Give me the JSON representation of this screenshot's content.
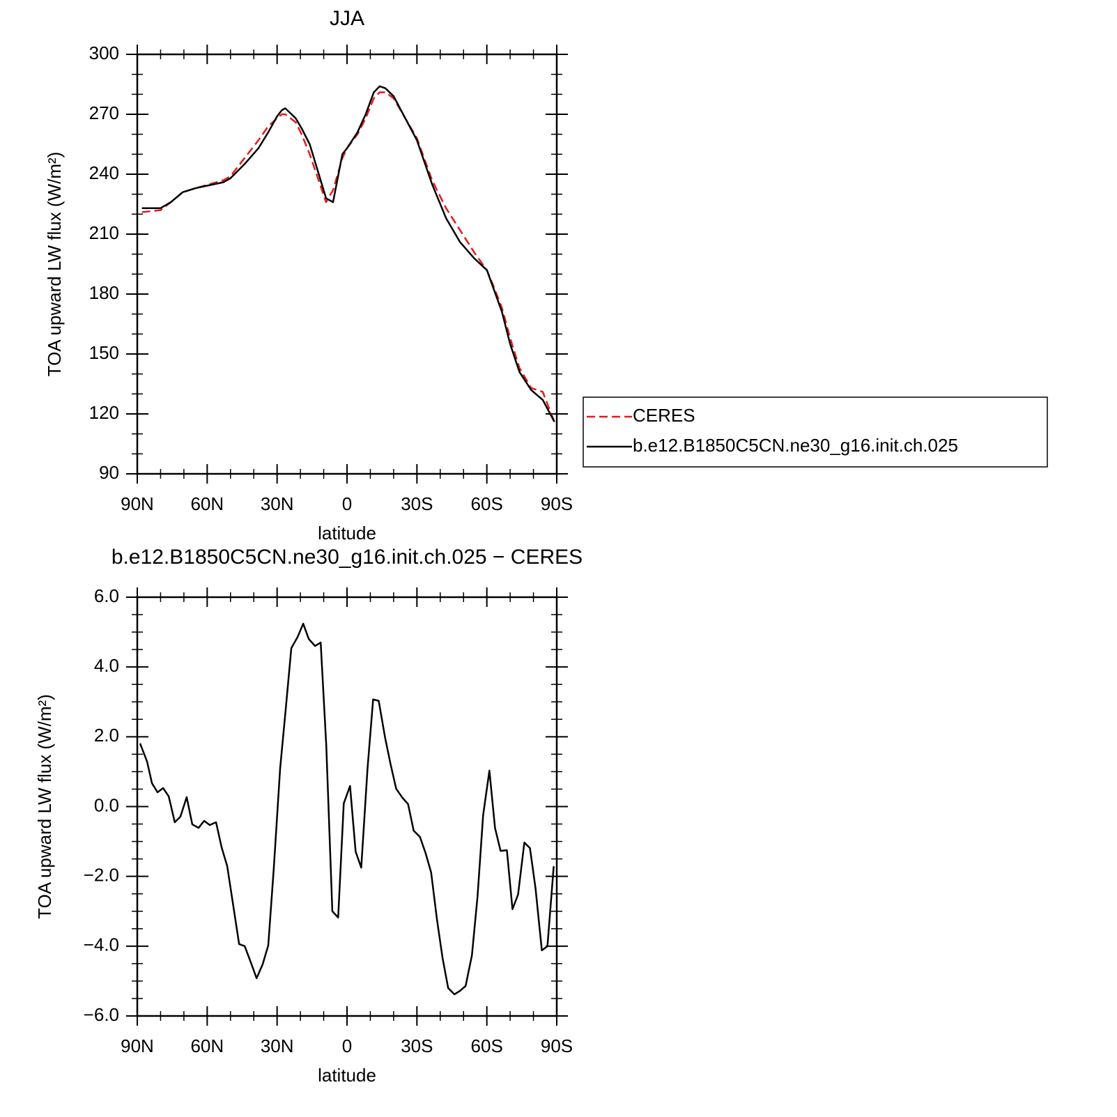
{
  "chart_data": [
    {
      "type": "line",
      "title": "JJA",
      "xlabel": "latitude",
      "ylabel": "TOA upward LW flux (W/m²)",
      "x": [
        88,
        80,
        75.6,
        70.5,
        65,
        59,
        53,
        50,
        44,
        38,
        33.8,
        30,
        28,
        26.5,
        22,
        19.5,
        16,
        9,
        6,
        2,
        0,
        -4.5,
        -8,
        -11.5,
        -14,
        -16.5,
        -20,
        -30,
        -36.5,
        -42.5,
        -48.5,
        -54.5,
        -60,
        -62.5,
        -66.5,
        -70,
        -74,
        -79,
        -84,
        -89
      ],
      "series": [
        {
          "name": "CERES",
          "color": "#e41a1c",
          "line_style": "dashed",
          "values": [
            221,
            222,
            226,
            231,
            233,
            235,
            237,
            239,
            248,
            257,
            264,
            268,
            270,
            270,
            266,
            260,
            250,
            226,
            232,
            248,
            253,
            260,
            268,
            278,
            281,
            281,
            278,
            258,
            237,
            223,
            212,
            201,
            192,
            185,
            173,
            158,
            143,
            133,
            131,
            116
          ]
        },
        {
          "name": "b.e12.B1850C5CN.ne30_g16.init.ch.025",
          "color": "#000000",
          "line_style": "solid",
          "values": [
            223,
            223,
            226,
            231,
            233,
            234.5,
            236,
            238,
            245,
            253,
            261,
            269,
            272,
            273,
            268,
            263,
            255,
            228,
            226,
            250,
            253,
            261,
            270,
            281,
            284,
            283,
            279,
            257,
            235,
            218,
            206,
            198,
            192,
            184,
            171,
            155,
            141,
            132,
            127,
            116
          ]
        }
      ],
      "xlim": [
        90,
        -90
      ],
      "xticks": [
        {
          "value": 90,
          "label": "90N"
        },
        {
          "value": 60,
          "label": "60N"
        },
        {
          "value": 30,
          "label": "30N"
        },
        0,
        {
          "value": -30,
          "label": "30S"
        },
        {
          "value": -60,
          "label": "60S"
        },
        {
          "value": -90,
          "label": "90S"
        }
      ],
      "xminor_ticks": [
        80,
        70,
        50,
        40,
        20,
        10,
        -10,
        -20,
        -40,
        -50,
        -70,
        -80
      ],
      "ylim": [
        90,
        300
      ],
      "yticks": [
        90,
        120,
        150,
        180,
        210,
        240,
        270,
        300
      ],
      "yminor_ticks": [
        100,
        110,
        130,
        140,
        160,
        170,
        190,
        200,
        220,
        230,
        250,
        260,
        280,
        290
      ],
      "legend": "outside-right"
    },
    {
      "type": "line",
      "title": "b.e12.B1850C5CN.ne30_g16.init.ch.025 − CERES",
      "xlabel": "latitude",
      "ylabel": "TOA upward LW flux (W/m²)",
      "x": [
        88.8,
        85.8,
        83.7,
        81.3,
        78.9,
        76.5,
        73.9,
        71.5,
        68.8,
        66.4,
        63.7,
        61.3,
        58.9,
        56.2,
        53.8,
        51.4,
        48.7,
        46.3,
        43.9,
        41.2,
        38.8,
        36.2,
        33.8,
        31.4,
        28.7,
        26.3,
        23.9,
        21.2,
        18.8,
        16.4,
        13.7,
        11.3,
        8.9,
        6.3,
        3.8,
        1.4,
        -1.3,
        -3.7,
        -6.1,
        -8.8,
        -11.2,
        -13.6,
        -16.3,
        -18.7,
        -21.1,
        -23.8,
        -26.2,
        -28.6,
        -31.3,
        -33.7,
        -36.1,
        -38.6,
        -41,
        -43.4,
        -46.1,
        -48.5,
        -50.9,
        -53.6,
        -56,
        -58.4,
        -61.1,
        -63.5,
        -65.9,
        -68.6,
        -71,
        -73.4,
        -76.1,
        -78.5,
        -80.9,
        -83.6,
        -86,
        -88.7
      ],
      "color": "#000000",
      "values": [
        1.81,
        1.29,
        0.67,
        0.41,
        0.53,
        0.29,
        -0.45,
        -0.29,
        0.27,
        -0.51,
        -0.61,
        -0.41,
        -0.53,
        -0.45,
        -1.17,
        -1.71,
        -2.89,
        -3.94,
        -4.0,
        -4.48,
        -4.92,
        -4.52,
        -3.98,
        -1.75,
        1.09,
        2.79,
        4.54,
        4.86,
        5.24,
        4.8,
        4.6,
        4.7,
        1.75,
        -3.0,
        -3.18,
        0.09,
        0.59,
        -1.29,
        -1.75,
        1.09,
        3.07,
        3.03,
        1.99,
        1.21,
        0.51,
        0.25,
        0.07,
        -0.69,
        -0.87,
        -1.33,
        -1.89,
        -3.24,
        -4.34,
        -5.2,
        -5.38,
        -5.28,
        -5.14,
        -4.26,
        -2.58,
        -0.25,
        1.03,
        -0.61,
        -1.27,
        -1.25,
        -2.94,
        -2.52,
        -1.03,
        -1.19,
        -2.35,
        -4.12,
        -4.0,
        -1.71
      ],
      "xlim": [
        90,
        -90
      ],
      "xticks": [
        {
          "value": 90,
          "label": "90N"
        },
        {
          "value": 60,
          "label": "60N"
        },
        {
          "value": 30,
          "label": "30N"
        },
        0,
        {
          "value": -30,
          "label": "30S"
        },
        {
          "value": -60,
          "label": "60S"
        },
        {
          "value": -90,
          "label": "90S"
        }
      ],
      "xminor_ticks": [
        80,
        70,
        50,
        40,
        20,
        10,
        -10,
        -20,
        -40,
        -50,
        -70,
        -80
      ],
      "ylim": [
        -6,
        6
      ],
      "yticks": [
        {
          "value": -6,
          "label": "−6.0"
        },
        {
          "value": -4,
          "label": "−4.0"
        },
        {
          "value": -2,
          "label": "−2.0"
        },
        {
          "value": 0,
          "label": "0.0"
        },
        {
          "value": 2,
          "label": "2.0"
        },
        {
          "value": 4,
          "label": "4.0"
        },
        {
          "value": 6,
          "label": "6.0"
        }
      ],
      "yminor_ticks": [
        -5.5,
        -5,
        -4.5,
        -3.5,
        -3,
        -2.5,
        -1.5,
        -1,
        -0.5,
        0.5,
        1,
        1.5,
        2.5,
        3,
        3.5,
        4.5,
        5,
        5.5
      ]
    }
  ]
}
